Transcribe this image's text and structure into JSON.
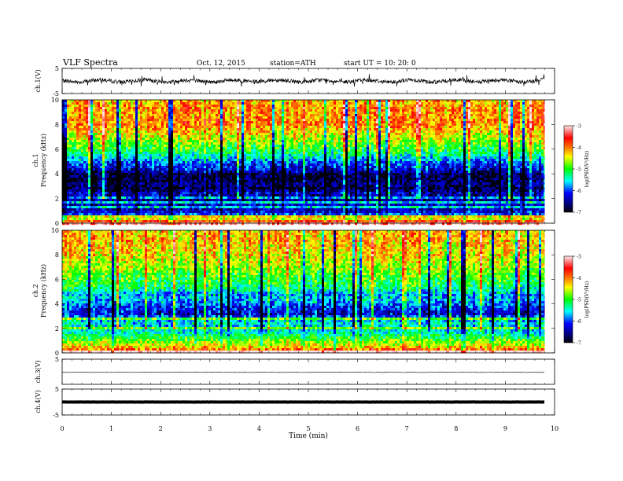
{
  "header": {
    "title": "VLF  Spectra",
    "date": "Oct. 12, 2015",
    "station": "station=ATH",
    "start": "start  UT  =   10: 20: 0"
  },
  "chart_data": [
    {
      "type": "line",
      "panel": "ch1-waveform",
      "ylabel": "ch.1(V)",
      "ylim": [
        -5,
        5
      ],
      "y_tick_labels": [
        "5",
        "-5"
      ],
      "xlim": [
        0,
        10
      ],
      "trace_extent_min": [
        0,
        9.8
      ],
      "baseline_v": 0.0,
      "amplitude_note": "noisy broadband trace, roughly ±1 V with spikes to ±2 V"
    },
    {
      "type": "heatmap",
      "panel": "ch1-spectrogram",
      "ylabel_lines": [
        "ch.1",
        "Frequency  (kHz)"
      ],
      "ylim": [
        0,
        10
      ],
      "y_tick_labels": [
        "0",
        "2",
        "4",
        "6",
        "8",
        "10"
      ],
      "xlim": [
        0,
        10
      ],
      "data_extent_min": [
        0,
        9.8
      ],
      "colorbar": {
        "label": "log(PSD(V²/Hz)",
        "range": [
          -7,
          -3
        ],
        "tick_labels": [
          "-3",
          "-4",
          "-5",
          "-6",
          "-7"
        ]
      },
      "profile_log_psd": [
        [
          0.0,
          -3.2
        ],
        [
          0.4,
          -4.6
        ],
        [
          0.8,
          -6.2
        ],
        [
          1.2,
          -6.4
        ],
        [
          1.6,
          -6.3
        ],
        [
          2.0,
          -6.6
        ],
        [
          2.4,
          -6.3
        ],
        [
          2.8,
          -6.8
        ],
        [
          3.2,
          -6.6
        ],
        [
          3.6,
          -6.8
        ],
        [
          4.0,
          -6.7
        ],
        [
          4.4,
          -6.2
        ],
        [
          4.8,
          -6.0
        ],
        [
          5.2,
          -5.6
        ],
        [
          5.6,
          -5.3
        ],
        [
          6.0,
          -5.0
        ],
        [
          6.4,
          -4.8
        ],
        [
          6.8,
          -4.6
        ],
        [
          7.2,
          -4.4
        ],
        [
          7.6,
          -4.2
        ],
        [
          8.0,
          -4.0
        ],
        [
          8.4,
          -4.0
        ],
        [
          8.8,
          -4.1
        ],
        [
          9.2,
          -4.0
        ],
        [
          9.6,
          -4.1
        ],
        [
          10.0,
          -4.2
        ]
      ]
    },
    {
      "type": "heatmap",
      "panel": "ch2-spectrogram",
      "ylabel_lines": [
        "ch.2",
        "Frequency  (kHz)"
      ],
      "ylim": [
        0,
        10
      ],
      "y_tick_labels": [
        "0",
        "2",
        "4",
        "6",
        "8",
        "10"
      ],
      "xlim": [
        0,
        10
      ],
      "data_extent_min": [
        0,
        9.8
      ],
      "colorbar": {
        "label": "log(PSD(V²/Hz)",
        "range": [
          -7,
          -3
        ],
        "tick_labels": [
          "-3",
          "-4",
          "-5",
          "-6",
          "-7"
        ]
      },
      "profile_log_psd": [
        [
          0.0,
          -3.4
        ],
        [
          0.4,
          -4.2
        ],
        [
          0.8,
          -4.6
        ],
        [
          1.2,
          -5.0
        ],
        [
          1.6,
          -5.4
        ],
        [
          2.0,
          -5.6
        ],
        [
          2.4,
          -5.5
        ],
        [
          2.8,
          -5.7
        ],
        [
          3.2,
          -6.3
        ],
        [
          3.6,
          -6.1
        ],
        [
          4.0,
          -5.9
        ],
        [
          4.4,
          -5.6
        ],
        [
          4.8,
          -5.7
        ],
        [
          5.2,
          -5.3
        ],
        [
          5.6,
          -5.1
        ],
        [
          6.0,
          -5.0
        ],
        [
          6.4,
          -4.9
        ],
        [
          6.8,
          -4.7
        ],
        [
          7.2,
          -4.6
        ],
        [
          7.6,
          -4.5
        ],
        [
          8.0,
          -4.4
        ],
        [
          8.4,
          -4.3
        ],
        [
          8.8,
          -4.3
        ],
        [
          9.2,
          -4.2
        ],
        [
          9.6,
          -4.2
        ],
        [
          10.0,
          -4.3
        ]
      ]
    },
    {
      "type": "line",
      "panel": "ch3-waveform",
      "ylabel": "ch.3(V)",
      "ylim": [
        -5,
        5
      ],
      "y_tick_labels": [
        "5"
      ],
      "xlim": [
        0,
        10
      ],
      "trace_extent_min": [
        0,
        9.8
      ],
      "baseline_v": -0.2,
      "amplitude_note": "nearly flat thin trace"
    },
    {
      "type": "line",
      "panel": "ch4-waveform",
      "ylabel": "ch.4(V)",
      "ylim": [
        -5,
        5
      ],
      "y_tick_labels": [
        "5",
        "-5"
      ],
      "xlim": [
        0,
        10
      ],
      "trace_extent_min": [
        0,
        9.8
      ],
      "baseline_v": 0.0,
      "amplitude_note": "flat thick trace"
    }
  ],
  "x_axis": {
    "label": "Time  (min)",
    "range": [
      0,
      10
    ],
    "tick_labels": [
      "0",
      "1",
      "2",
      "3",
      "4",
      "5",
      "6",
      "7",
      "8",
      "9",
      "10"
    ]
  },
  "colors": {
    "scale": [
      "#000000",
      "#0000ff",
      "#00ffff",
      "#00ff00",
      "#ffff00",
      "#ff8000",
      "#ff0000",
      "#ffffff"
    ],
    "trace": "#000000"
  }
}
